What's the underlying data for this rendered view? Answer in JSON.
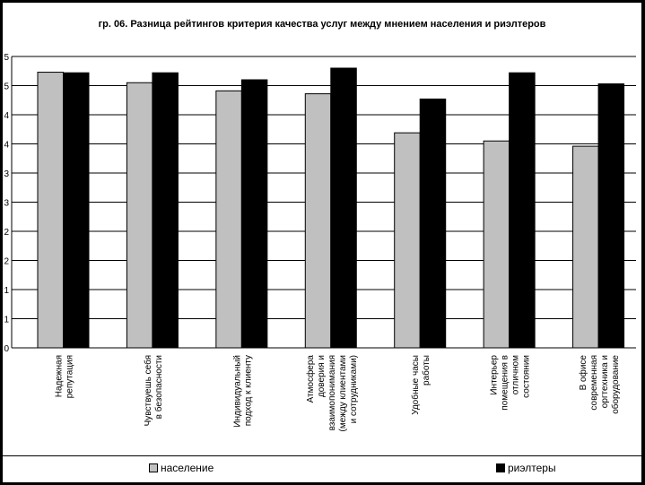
{
  "chart_data": {
    "type": "bar",
    "title": "гр. 06. Разница рейтингов критерия качества услуг между мнением населения и риэлтеров",
    "xlabel": "",
    "ylabel": "",
    "y_tick_labels": [
      "0",
      "1",
      "1",
      "2",
      "2",
      "3",
      "3",
      "4",
      "4",
      "5",
      "5"
    ],
    "ylim": [
      0,
      5
    ],
    "grid": true,
    "legend_position": "bottom",
    "categories": [
      [
        "Надежная",
        "репутация"
      ],
      [
        "Чувствуешь себя",
        "в безопасности"
      ],
      [
        "Индивидуальный",
        "подход к клиенту"
      ],
      [
        "Атмосфера",
        "доверия и",
        "взаимопонимания",
        "(между клиентами",
        "и сотрудниками)"
      ],
      [
        "Удобные часы",
        "работы"
      ],
      [
        "Интерьер",
        "помещения в",
        "отличном",
        "состоянии"
      ],
      [
        "В офисе",
        "современная",
        "оргтехника и",
        "оборудование"
      ]
    ],
    "series": [
      {
        "name": "население",
        "color": "#c0c0c0",
        "values": [
          4.73,
          4.55,
          4.41,
          4.36,
          3.69,
          3.55,
          3.46
        ]
      },
      {
        "name": "риэлтеры",
        "color": "#000000",
        "values": [
          4.72,
          4.72,
          4.6,
          4.8,
          4.27,
          4.72,
          4.53
        ]
      }
    ]
  }
}
